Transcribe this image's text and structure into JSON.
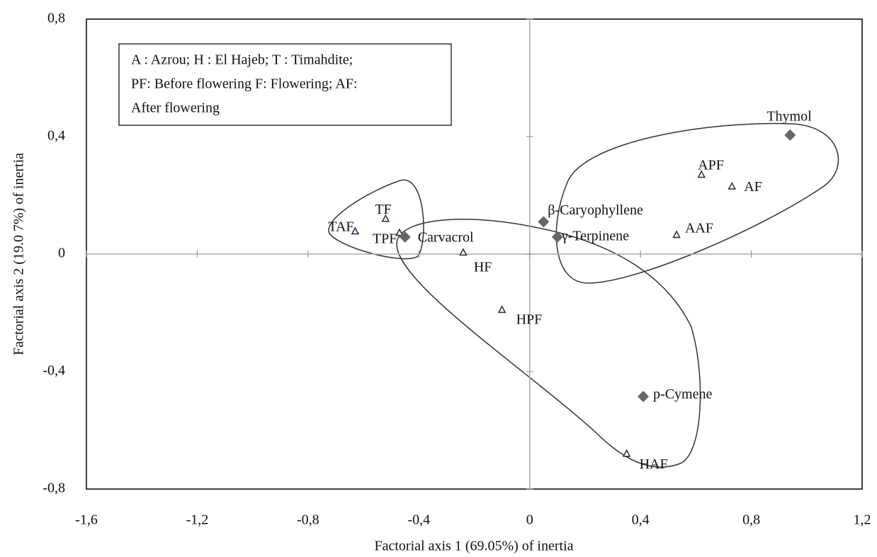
{
  "chart_data": {
    "type": "scatter",
    "xlabel": "Factorial axis 1 (69.05%) of inertia",
    "ylabel": "Factorial axis 2 (19.0 7%) of inertia",
    "annotation": [
      "A : Azrou; H : El Hajeb; T : Timahdite;",
      "PF: Before flowering F: Flowering; AF:",
      "After flowering"
    ],
    "xlim": [
      -1.6,
      1.2
    ],
    "ylim": [
      -0.8,
      0.8
    ],
    "xticks": [
      {
        "value": -1.6,
        "label": "-1,6"
      },
      {
        "value": -1.2,
        "label": "-1,2"
      },
      {
        "value": -0.8,
        "label": "-0,8"
      },
      {
        "value": -0.4,
        "label": "-0,4"
      },
      0,
      {
        "value": 0.4,
        "label": "0,4"
      },
      {
        "value": 0.8,
        "label": "0,8"
      },
      {
        "value": 1.2,
        "label": "1,2"
      }
    ],
    "yticks": [
      {
        "value": -0.8,
        "label": "-0,8"
      },
      {
        "value": -0.4,
        "label": "-0,4"
      },
      0,
      {
        "value": 0.4,
        "label": "0,4"
      },
      {
        "value": 0.8,
        "label": "0,8"
      }
    ],
    "series": [
      {
        "marker": "triangle",
        "color": "#1f2a44",
        "labels": [
          "APF",
          "AF",
          "AAF",
          "TF",
          "TAF",
          "TPF",
          "HF",
          "HPF",
          "HAF"
        ],
        "x": [
          0.62,
          0.73,
          0.53,
          -0.52,
          -0.63,
          -0.47,
          -0.24,
          -0.1,
          0.35
        ],
        "y": [
          0.27,
          0.23,
          0.065,
          0.12,
          0.077,
          0.072,
          0.005,
          -0.19,
          -0.68
        ]
      },
      {
        "marker": "diamond",
        "color": "#666666",
        "labels": [
          "Thymol",
          "β-Caryophyllene",
          "γ-Terpinene",
          "Carvacrol",
          "p-Cymene"
        ],
        "x": [
          0.94,
          0.05,
          0.1,
          -0.45,
          0.41
        ],
        "y": [
          0.405,
          0.11,
          0.058,
          0.058,
          -0.485
        ]
      }
    ]
  }
}
